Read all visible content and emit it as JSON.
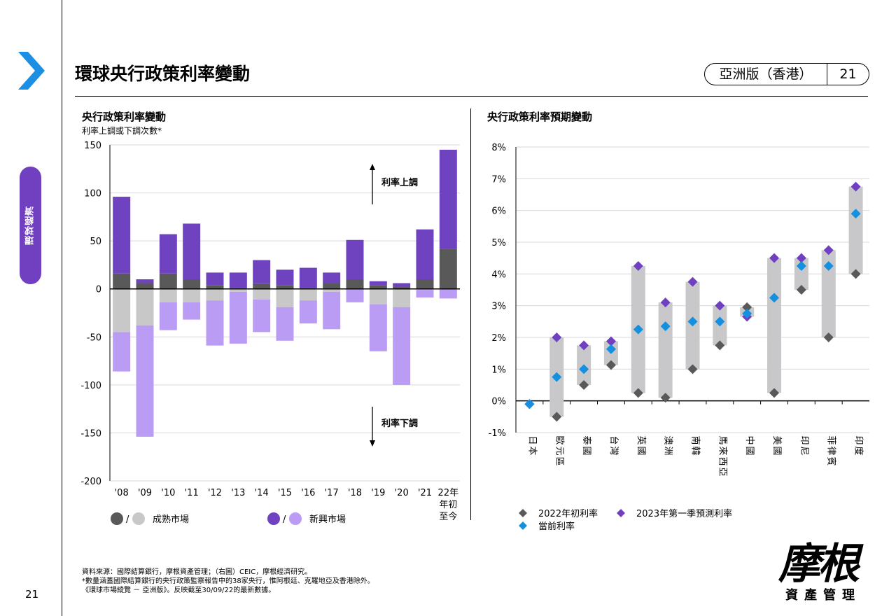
{
  "page": {
    "title": "環球央行政策利率變動",
    "region_label": "亞洲版（香港）",
    "page_number": "21",
    "side_tab": "環球經濟",
    "footnotes": [
      "資料來源：國際結算銀行，摩根資產管理；（右圖）CEIC，摩根經濟研究。",
      "*數量涵蓋國際結算銀行的央行政策監察報告中的38家央行，惟阿根廷、克羅地亞及香港除外。",
      "《環球市場縱覽 － 亞洲版》。反映截至30/09/22的最新數據。"
    ],
    "logo": {
      "main": "摩根",
      "sub": "資產管理"
    }
  },
  "colors": {
    "developed_up": "#595959",
    "developed_down": "#c8c8c8",
    "emerging_up": "#6f43bf",
    "emerging_down": "#bb9cf5",
    "band": "#c8c8ca",
    "start_marker": "#595959",
    "forecast_marker": "#7040c0",
    "current_marker": "#1490e0",
    "accent": "#1a8fe3"
  },
  "chart_data": [
    {
      "type": "bar",
      "title": "央行政策利率變動",
      "subtitle": "利率上調或下調次數*",
      "categories": [
        "'08",
        "'09",
        "'10",
        "'11",
        "'12",
        "'13",
        "'14",
        "'15",
        "'16",
        "'17",
        "'18",
        "'19",
        "'20",
        "'21",
        "22年\n年初\n至今"
      ],
      "ylim": [
        -200,
        150
      ],
      "yticks": [
        150,
        100,
        50,
        0,
        -50,
        -100,
        -150,
        -200
      ],
      "stacked": true,
      "series": [
        {
          "name": "成熟市場",
          "direction": "up",
          "values": [
            16,
            6,
            16,
            10,
            4,
            1,
            5,
            4,
            1,
            6,
            10,
            4,
            2,
            10,
            42
          ]
        },
        {
          "name": "新興市場",
          "direction": "up",
          "values": [
            80,
            4,
            41,
            58,
            13,
            16,
            25,
            16,
            21,
            11,
            41,
            4,
            4,
            52,
            103
          ]
        },
        {
          "name": "成熟市場",
          "direction": "down",
          "values": [
            -45,
            -38,
            -14,
            -14,
            -12,
            -3,
            -11,
            -19,
            -12,
            -3,
            0,
            -16,
            -19,
            -1,
            0
          ]
        },
        {
          "name": "新興市場",
          "direction": "down",
          "values": [
            -41,
            -116,
            -29,
            -18,
            -47,
            -54,
            -34,
            -35,
            -24,
            -39,
            -14,
            -49,
            -81,
            -8,
            -10
          ]
        }
      ],
      "annotations": {
        "up": "利率上調",
        "down": "利率下調"
      },
      "legend": {
        "placement": "bottom",
        "separator": "/",
        "items": [
          "成熟市場",
          "新興市場"
        ]
      }
    },
    {
      "type": "scatter",
      "title": "央行政策利率預期變動",
      "categories": [
        "日本",
        "歐元區",
        "泰國",
        "台灣",
        "英國",
        "澳洲",
        "南韓",
        "馬來西亞",
        "中國",
        "美國",
        "印尼",
        "菲律賓",
        "印度"
      ],
      "ylim": [
        -1,
        8
      ],
      "yticks": [
        "8%",
        "7%",
        "6%",
        "5%",
        "4%",
        "3%",
        "2%",
        "1%",
        "0%",
        "-1%"
      ],
      "series": [
        {
          "name": "2022年初利率",
          "values": [
            -0.1,
            -0.5,
            0.5,
            1.13,
            0.25,
            0.1,
            1.0,
            1.75,
            2.95,
            0.25,
            3.5,
            2.0,
            4.0
          ]
        },
        {
          "name": "當前利率",
          "values": [
            -0.1,
            0.75,
            1.0,
            1.63,
            2.25,
            2.35,
            2.5,
            2.5,
            2.75,
            3.25,
            4.25,
            4.25,
            5.9
          ]
        },
        {
          "name": "2023年第一季預測利率",
          "values": [
            -0.1,
            2.0,
            1.75,
            1.88,
            4.25,
            3.1,
            3.75,
            3.0,
            2.65,
            4.5,
            4.5,
            4.75,
            6.75
          ]
        }
      ],
      "legend": {
        "placement": "bottom",
        "items": [
          "2022年初利率",
          "2023年第一季預測利率",
          "當前利率"
        ]
      }
    }
  ]
}
